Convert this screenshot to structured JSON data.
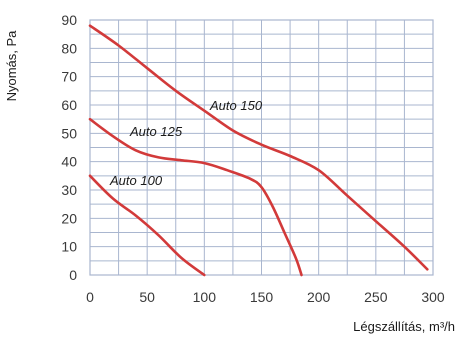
{
  "chart_data": {
    "type": "line",
    "xlabel": "Légszállítás, m³/h",
    "ylabel": "Nyomás, Pa",
    "xlim": [
      0,
      300
    ],
    "ylim": [
      0,
      90
    ],
    "x_ticks": [
      "0",
      "50",
      "100",
      "150",
      "200",
      "250",
      "300"
    ],
    "y_ticks": [
      "0",
      "10",
      "20",
      "30",
      "40",
      "50",
      "60",
      "70",
      "80",
      "90"
    ],
    "grid": true,
    "line_color": "#d23a3a",
    "grid_color": "#a9b6cf",
    "series": [
      {
        "name": "Auto 100",
        "x": [
          0,
          20,
          40,
          60,
          80,
          100
        ],
        "y": [
          35,
          27,
          21,
          14,
          6,
          0
        ]
      },
      {
        "name": "Auto 125",
        "x": [
          0,
          20,
          40,
          60,
          80,
          100,
          120,
          140,
          150,
          160,
          170,
          180,
          185
        ],
        "y": [
          55,
          49,
          44,
          41.5,
          40.5,
          39.5,
          37,
          34,
          31,
          24,
          15,
          6,
          0
        ]
      },
      {
        "name": "Auto 150",
        "x": [
          0,
          25,
          50,
          75,
          100,
          125,
          150,
          175,
          200,
          225,
          250,
          275,
          295
        ],
        "y": [
          88,
          81,
          73,
          65,
          58,
          51,
          46,
          42,
          37,
          28,
          19,
          10,
          2
        ]
      }
    ]
  }
}
